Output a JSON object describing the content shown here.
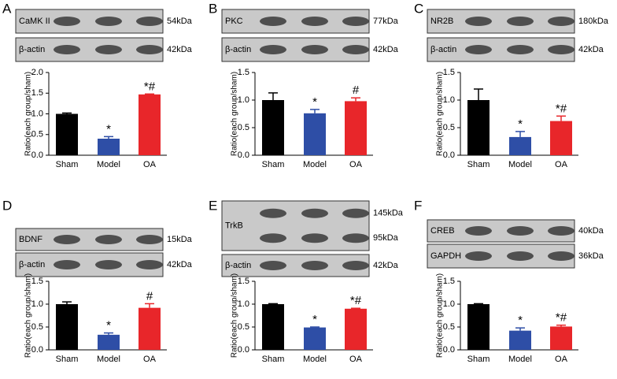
{
  "chart_data": [
    {
      "type": "bar",
      "panel": "A",
      "blots": [
        {
          "label": "CaMK II",
          "sizes": [
            "54kDa"
          ]
        },
        {
          "label": "β-actin",
          "sizes": [
            "42kDa"
          ]
        }
      ],
      "y_label": "Ratio(each group/sham)",
      "categories": [
        "Sham",
        "Model",
        "OA"
      ],
      "colors": [
        "#000000",
        "#2e4ea6",
        "#e8262a"
      ],
      "values": [
        1.0,
        0.4,
        1.47
      ],
      "errors": [
        0.02,
        0.05,
        0.01
      ],
      "annotations": [
        null,
        "*",
        "*#"
      ],
      "ylim": [
        0,
        2
      ],
      "yticks": [
        {
          "value": 0,
          "label": "0.0"
        },
        0.5,
        {
          "value": 1,
          "label": "1.0"
        },
        1.5,
        {
          "value": 2,
          "label": "2.0"
        }
      ]
    },
    {
      "type": "bar",
      "panel": "B",
      "blots": [
        {
          "label": "PKC",
          "sizes": [
            "77kDa"
          ]
        },
        {
          "label": "β-actin",
          "sizes": [
            "42kDa"
          ]
        }
      ],
      "y_label": "Ratio(each group/sham)",
      "categories": [
        "Sham",
        "Model",
        "OA"
      ],
      "colors": [
        "#000000",
        "#2e4ea6",
        "#e8262a"
      ],
      "values": [
        1.0,
        0.76,
        0.98
      ],
      "errors": [
        0.13,
        0.07,
        0.06
      ],
      "annotations": [
        null,
        "*",
        "#"
      ],
      "ylim": [
        0,
        1.5
      ],
      "yticks": [
        {
          "value": 0,
          "label": "0.0"
        },
        0.5,
        {
          "value": 1,
          "label": "1.0"
        },
        1.5
      ]
    },
    {
      "type": "bar",
      "panel": "C",
      "blots": [
        {
          "label": "NR2B",
          "sizes": [
            "180kDa"
          ]
        },
        {
          "label": "β-actin",
          "sizes": [
            "42kDa"
          ]
        }
      ],
      "y_label": "Ratio(each group/sham)",
      "categories": [
        "Sham",
        "Model",
        "OA"
      ],
      "colors": [
        "#000000",
        "#2e4ea6",
        "#e8262a"
      ],
      "values": [
        1.0,
        0.33,
        0.62
      ],
      "errors": [
        0.2,
        0.1,
        0.09
      ],
      "annotations": [
        null,
        "*",
        "*#"
      ],
      "ylim": [
        0,
        1.5
      ],
      "yticks": [
        {
          "value": 0,
          "label": "0.0"
        },
        0.5,
        {
          "value": 1,
          "label": "1.0"
        },
        1.5
      ]
    },
    {
      "type": "bar",
      "panel": "D",
      "blots": [
        {
          "label": "BDNF",
          "sizes": [
            "15kDa"
          ]
        },
        {
          "label": "β-actin",
          "sizes": [
            "42kDa"
          ]
        }
      ],
      "y_label": "Ratio(each group/sham)",
      "categories": [
        "Sham",
        "Model",
        "OA"
      ],
      "colors": [
        "#000000",
        "#2e4ea6",
        "#e8262a"
      ],
      "values": [
        1.0,
        0.33,
        0.92
      ],
      "errors": [
        0.05,
        0.04,
        0.09
      ],
      "annotations": [
        null,
        "*",
        "#"
      ],
      "ylim": [
        0,
        1.5
      ],
      "yticks": [
        {
          "value": 0,
          "label": "0.0"
        },
        0.5,
        {
          "value": 1,
          "label": "1.0"
        },
        1.5
      ]
    },
    {
      "type": "bar",
      "panel": "E",
      "blots": [
        {
          "label": "TrkB",
          "sizes": [
            "145kDa",
            "95kDa"
          ]
        },
        {
          "label": "β-actin",
          "sizes": [
            "42kDa"
          ]
        }
      ],
      "y_label": "Ratio(each group/sham)",
      "categories": [
        "Sham",
        "Model",
        "OA"
      ],
      "colors": [
        "#000000",
        "#2e4ea6",
        "#e8262a"
      ],
      "values": [
        1.0,
        0.49,
        0.9
      ],
      "errors": [
        0.01,
        0.01,
        0.01
      ],
      "annotations": [
        null,
        "*",
        "*#"
      ],
      "ylim": [
        0,
        1.5
      ],
      "yticks": [
        {
          "value": 0,
          "label": "0.0"
        },
        0.5,
        {
          "value": 1,
          "label": "1.0"
        },
        1.5
      ]
    },
    {
      "type": "bar",
      "panel": "F",
      "blots": [
        {
          "label": "CREB",
          "sizes": [
            "40kDa"
          ]
        },
        {
          "label": "GAPDH",
          "sizes": [
            "36kDa"
          ]
        }
      ],
      "y_label": "Ratio(each group/sham)",
      "categories": [
        "Sham",
        "Model",
        "OA"
      ],
      "colors": [
        "#000000",
        "#2e4ea6",
        "#e8262a"
      ],
      "values": [
        1.0,
        0.42,
        0.51
      ],
      "errors": [
        0.01,
        0.06,
        0.03
      ],
      "annotations": [
        null,
        "*",
        "*#"
      ],
      "ylim": [
        0,
        1.5
      ],
      "yticks": [
        {
          "value": 0,
          "label": "0.0"
        },
        0.5,
        {
          "value": 1,
          "label": "1.0"
        },
        1.5
      ]
    }
  ]
}
